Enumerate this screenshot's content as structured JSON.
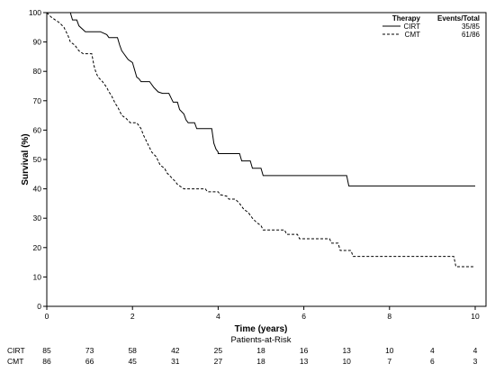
{
  "chart_data": {
    "type": "line",
    "xlabel": "Time (years)",
    "ylabel": "Survival (%)",
    "xlim": [
      0,
      10
    ],
    "ylim": [
      0,
      100
    ],
    "x_ticks": [
      0,
      2,
      4,
      6,
      8,
      10
    ],
    "y_ticks": [
      0,
      10,
      20,
      30,
      40,
      50,
      60,
      70,
      80,
      90,
      100
    ],
    "grid": false,
    "legend": {
      "position": "top-right",
      "header_group": "Therapy",
      "header_value": "Events/Total"
    },
    "series": [
      {
        "name": "CIRT",
        "events_total": "35/85",
        "line_style": "solid",
        "color": "#000000",
        "points": [
          [
            0,
            100
          ],
          [
            0.55,
            100
          ],
          [
            0.6,
            97.5
          ],
          [
            0.7,
            97.5
          ],
          [
            0.75,
            95.5
          ],
          [
            0.9,
            93.5
          ],
          [
            1.25,
            93.5
          ],
          [
            1.4,
            92.5
          ],
          [
            1.45,
            91.5
          ],
          [
            1.65,
            91.5
          ],
          [
            1.7,
            89
          ],
          [
            1.75,
            87
          ],
          [
            1.8,
            86
          ],
          [
            1.85,
            85
          ],
          [
            1.9,
            84
          ],
          [
            2,
            83
          ],
          [
            2.05,
            80.5
          ],
          [
            2.1,
            78
          ],
          [
            2.15,
            77.5
          ],
          [
            2.2,
            76.5
          ],
          [
            2.4,
            76.5
          ],
          [
            2.5,
            74.5
          ],
          [
            2.6,
            73
          ],
          [
            2.7,
            72.5
          ],
          [
            2.85,
            72.5
          ],
          [
            2.9,
            71
          ],
          [
            2.95,
            69.5
          ],
          [
            3.05,
            69.5
          ],
          [
            3.1,
            67
          ],
          [
            3.2,
            65.5
          ],
          [
            3.25,
            63.5
          ],
          [
            3.3,
            62.5
          ],
          [
            3.45,
            62.5
          ],
          [
            3.5,
            60.5
          ],
          [
            3.85,
            60.5
          ],
          [
            3.9,
            55.5
          ],
          [
            3.95,
            53.5
          ],
          [
            4,
            52.5
          ],
          [
            4,
            52
          ],
          [
            4.5,
            52
          ],
          [
            4.55,
            49.5
          ],
          [
            4.75,
            49.5
          ],
          [
            4.8,
            47
          ],
          [
            5,
            47
          ],
          [
            5.05,
            44.5
          ],
          [
            7,
            44.5
          ],
          [
            7.05,
            41
          ],
          [
            10,
            41
          ]
        ]
      },
      {
        "name": "CMT",
        "events_total": "61/86",
        "line_style": "dashed",
        "color": "#000000",
        "points": [
          [
            0,
            100
          ],
          [
            0.1,
            98.5
          ],
          [
            0.2,
            97.5
          ],
          [
            0.3,
            96.5
          ],
          [
            0.4,
            95
          ],
          [
            0.45,
            93.5
          ],
          [
            0.5,
            92
          ],
          [
            0.55,
            90
          ],
          [
            0.65,
            89
          ],
          [
            0.75,
            87
          ],
          [
            0.85,
            86
          ],
          [
            1.05,
            86
          ],
          [
            1.1,
            82
          ],
          [
            1.15,
            79.5
          ],
          [
            1.2,
            78
          ],
          [
            1.3,
            76.5
          ],
          [
            1.4,
            74.5
          ],
          [
            1.45,
            73
          ],
          [
            1.5,
            72
          ],
          [
            1.55,
            70.5
          ],
          [
            1.6,
            69
          ],
          [
            1.65,
            68
          ],
          [
            1.7,
            66.5
          ],
          [
            1.75,
            65
          ],
          [
            1.85,
            64
          ],
          [
            1.95,
            62.5
          ],
          [
            2.1,
            62.5
          ],
          [
            2.2,
            60.5
          ],
          [
            2.25,
            58.5
          ],
          [
            2.3,
            57
          ],
          [
            2.35,
            55.5
          ],
          [
            2.4,
            54
          ],
          [
            2.45,
            52.5
          ],
          [
            2.55,
            51
          ],
          [
            2.6,
            49.5
          ],
          [
            2.65,
            48
          ],
          [
            2.75,
            47
          ],
          [
            2.8,
            45.5
          ],
          [
            2.9,
            44
          ],
          [
            3,
            42.5
          ],
          [
            3.05,
            41.5
          ],
          [
            3.15,
            40.5
          ],
          [
            3.2,
            40
          ],
          [
            3.7,
            40
          ],
          [
            3.75,
            39
          ],
          [
            4,
            39
          ],
          [
            4.05,
            38
          ],
          [
            4.2,
            37.5
          ],
          [
            4.25,
            36.5
          ],
          [
            4.4,
            36.5
          ],
          [
            4.5,
            35
          ],
          [
            4.55,
            34
          ],
          [
            4.6,
            33
          ],
          [
            4.7,
            32
          ],
          [
            4.75,
            31
          ],
          [
            4.8,
            30
          ],
          [
            4.9,
            28.5
          ],
          [
            5,
            27.5
          ],
          [
            5.05,
            26
          ],
          [
            5.55,
            26
          ],
          [
            5.6,
            24.5
          ],
          [
            5.85,
            24.5
          ],
          [
            5.9,
            23
          ],
          [
            6.6,
            23
          ],
          [
            6.65,
            21.5
          ],
          [
            6.8,
            21.5
          ],
          [
            6.85,
            19
          ],
          [
            7.1,
            19
          ],
          [
            7.15,
            17
          ],
          [
            9.5,
            17
          ],
          [
            9.55,
            13.5
          ],
          [
            10,
            13.5
          ]
        ]
      }
    ],
    "risk_table": {
      "title": "Patients-at-Risk",
      "timepoints": [
        0,
        1,
        2,
        3,
        4,
        5,
        6,
        7,
        8,
        9,
        10
      ],
      "rows": [
        {
          "label": "CIRT",
          "values": [
            "85",
            "73",
            "58",
            "42",
            "25",
            "18",
            "16",
            "13",
            "10",
            "4",
            "4"
          ]
        },
        {
          "label": "CMT",
          "values": [
            "86",
            "66",
            "45",
            "31",
            "27",
            "18",
            "13",
            "10",
            "7",
            "6",
            "3"
          ]
        }
      ]
    }
  }
}
